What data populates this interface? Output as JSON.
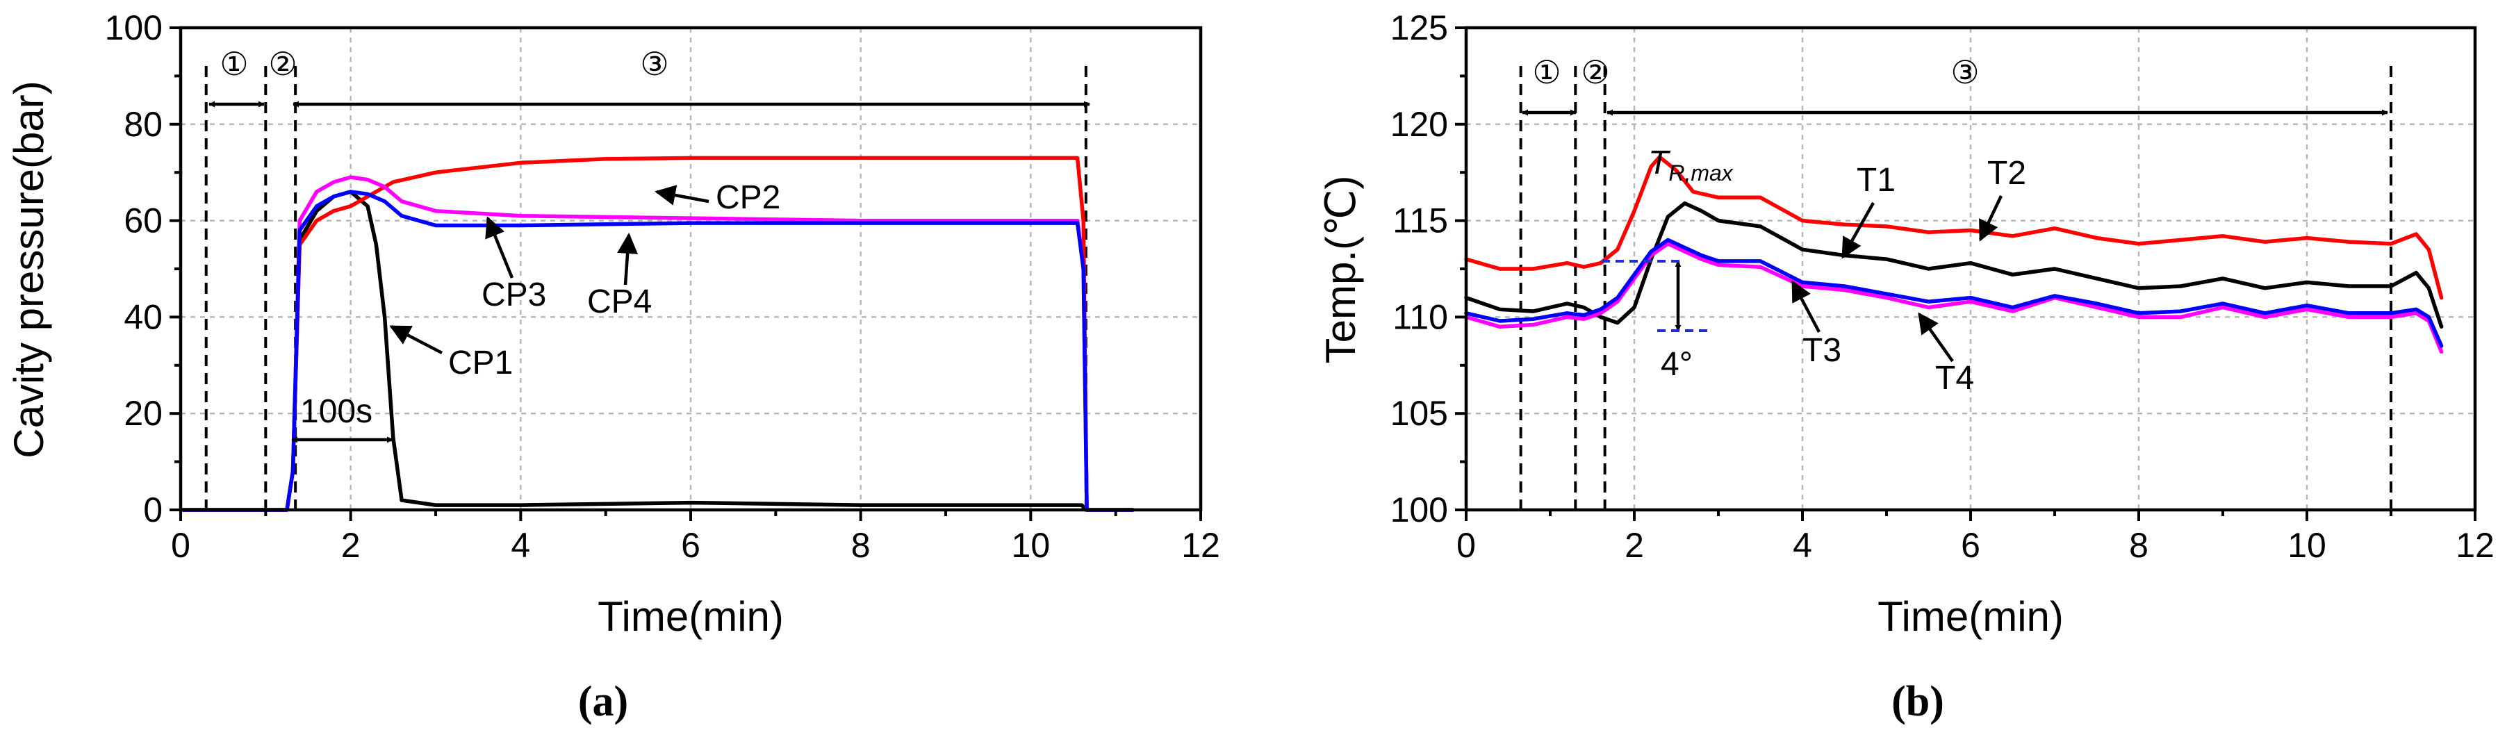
{
  "chart_data": [
    {
      "type": "line",
      "panel_label": "(a)",
      "xlabel": "Time(min)",
      "ylabel": "Cavity pressure(bar)",
      "xlim": [
        0,
        12
      ],
      "ylim": [
        0,
        100
      ],
      "xticks": [
        0,
        2,
        4,
        6,
        8,
        10,
        12
      ],
      "yticks": [
        0,
        20,
        40,
        60,
        80,
        100
      ],
      "grid": true,
      "colors": {
        "CP1": "#000000",
        "CP2": "#ff0000",
        "CP3": "#ff00ff",
        "CP4": "#0000ff"
      },
      "series": [
        {
          "name": "CP1",
          "x": [
            0,
            1.25,
            1.32,
            1.4,
            1.6,
            1.8,
            2.0,
            2.2,
            2.3,
            2.4,
            2.5,
            2.6,
            3,
            4,
            6,
            8,
            10,
            10.6,
            10.65,
            11.2
          ],
          "y": [
            0,
            0,
            8,
            56,
            62,
            65,
            66,
            63,
            55,
            40,
            15,
            2,
            1,
            1,
            1.5,
            1,
            1,
            1,
            0,
            0
          ]
        },
        {
          "name": "CP2",
          "x": [
            0,
            1.25,
            1.32,
            1.4,
            1.6,
            1.8,
            2.0,
            2.2,
            2.5,
            3,
            4,
            5,
            6,
            7,
            8,
            9,
            10,
            10.55,
            10.62,
            10.66,
            11.2
          ],
          "y": [
            0,
            0,
            8,
            55,
            60,
            62,
            63,
            65,
            68,
            70,
            72,
            72.8,
            73,
            73,
            73,
            73,
            73,
            73,
            60,
            0,
            0
          ]
        },
        {
          "name": "CP3",
          "x": [
            0,
            1.25,
            1.32,
            1.4,
            1.6,
            1.8,
            2.0,
            2.2,
            2.4,
            2.6,
            3,
            4,
            6,
            8,
            10,
            10.55,
            10.62,
            10.66,
            11.2
          ],
          "y": [
            0,
            0,
            8,
            60,
            66,
            68,
            69,
            68.5,
            67,
            64,
            62,
            61,
            60.5,
            60,
            60,
            60,
            50,
            0,
            0
          ]
        },
        {
          "name": "CP4",
          "x": [
            0,
            1.25,
            1.32,
            1.4,
            1.6,
            1.8,
            2.0,
            2.2,
            2.4,
            2.6,
            3,
            4,
            6,
            8,
            10,
            10.55,
            10.62,
            10.66,
            11.2
          ],
          "y": [
            0,
            0,
            8,
            58,
            63,
            65,
            66,
            65.5,
            64,
            61,
            59,
            59,
            59.5,
            59.5,
            59.5,
            59.5,
            50,
            0,
            0
          ]
        }
      ],
      "annotations": {
        "cp1": "CP1",
        "cp2": "CP2",
        "cp3": "CP3",
        "cp4": "CP4",
        "duration": "100s",
        "phase1": "①",
        "phase2": "②",
        "phase3": "③"
      },
      "phase_lines": [
        0.3,
        1.0,
        1.35,
        10.65
      ]
    },
    {
      "type": "line",
      "panel_label": "(b)",
      "xlabel": "Time(min)",
      "ylabel": "Temp.(℃)",
      "xlim": [
        0,
        12
      ],
      "ylim": [
        100,
        125
      ],
      "xticks": [
        0,
        2,
        4,
        6,
        8,
        10,
        12
      ],
      "yticks": [
        100,
        105,
        110,
        115,
        120,
        125
      ],
      "grid": true,
      "colors": {
        "T1": "#000000",
        "T2": "#ff0000",
        "T3": "#ff00ff",
        "T4": "#0000ff"
      },
      "series": [
        {
          "name": "T1",
          "x": [
            0,
            0.4,
            0.8,
            1.2,
            1.4,
            1.6,
            1.8,
            2.0,
            2.2,
            2.4,
            2.6,
            2.8,
            3.0,
            3.5,
            4.0,
            4.5,
            5.0,
            5.5,
            6.0,
            6.5,
            7.0,
            7.5,
            8.0,
            8.5,
            9.0,
            9.5,
            10.0,
            10.5,
            11.0,
            11.3,
            11.45,
            11.6
          ],
          "y": [
            111,
            110.4,
            110.3,
            110.7,
            110.5,
            110.0,
            109.7,
            110.5,
            113,
            115.2,
            115.9,
            115.5,
            115,
            114.7,
            113.5,
            113.2,
            113.0,
            112.5,
            112.8,
            112.2,
            112.5,
            112.0,
            111.5,
            111.6,
            112.0,
            111.5,
            111.8,
            111.6,
            111.6,
            112.3,
            111.5,
            109.5
          ]
        },
        {
          "name": "T2",
          "x": [
            0,
            0.4,
            0.8,
            1.2,
            1.4,
            1.6,
            1.8,
            2.0,
            2.2,
            2.3,
            2.5,
            2.7,
            3.0,
            3.5,
            4.0,
            4.5,
            5.0,
            5.5,
            6.0,
            6.5,
            7.0,
            7.5,
            8.0,
            8.5,
            9.0,
            9.5,
            10.0,
            10.5,
            11.0,
            11.3,
            11.45,
            11.6
          ],
          "y": [
            113,
            112.5,
            112.5,
            112.8,
            112.6,
            112.8,
            113.5,
            115.5,
            117.8,
            118.3,
            117.6,
            116.5,
            116.2,
            116.2,
            115.0,
            114.8,
            114.7,
            114.4,
            114.5,
            114.2,
            114.6,
            114.1,
            113.8,
            114.0,
            114.2,
            113.9,
            114.1,
            113.9,
            113.8,
            114.3,
            113.5,
            111
          ]
        },
        {
          "name": "T3",
          "x": [
            0,
            0.4,
            0.8,
            1.2,
            1.4,
            1.6,
            1.8,
            2.0,
            2.2,
            2.4,
            2.6,
            2.8,
            3.0,
            3.5,
            4.0,
            4.5,
            5.0,
            5.5,
            6.0,
            6.5,
            7.0,
            7.5,
            8.0,
            8.5,
            9.0,
            9.5,
            10.0,
            10.5,
            11.0,
            11.3,
            11.45,
            11.6
          ],
          "y": [
            110,
            109.5,
            109.6,
            110.0,
            109.9,
            110.2,
            110.8,
            112,
            113.2,
            113.8,
            113.4,
            113.0,
            112.7,
            112.6,
            111.6,
            111.4,
            111.0,
            110.5,
            110.8,
            110.3,
            111.0,
            110.5,
            110.0,
            110.0,
            110.5,
            110.0,
            110.4,
            110.0,
            110.0,
            110.2,
            109.8,
            108.2
          ]
        },
        {
          "name": "T4",
          "x": [
            0,
            0.4,
            0.8,
            1.2,
            1.4,
            1.6,
            1.8,
            2.0,
            2.2,
            2.4,
            2.6,
            2.8,
            3.0,
            3.5,
            4.0,
            4.5,
            5.0,
            5.5,
            6.0,
            6.5,
            7.0,
            7.5,
            8.0,
            8.5,
            9.0,
            9.5,
            10.0,
            10.5,
            11.0,
            11.3,
            11.45,
            11.6
          ],
          "y": [
            110.2,
            109.8,
            109.9,
            110.2,
            110.1,
            110.4,
            111.0,
            112.2,
            113.4,
            114.0,
            113.6,
            113.2,
            112.9,
            112.9,
            111.8,
            111.6,
            111.2,
            110.8,
            111.0,
            110.5,
            111.1,
            110.7,
            110.2,
            110.3,
            110.7,
            110.2,
            110.6,
            110.2,
            110.2,
            110.4,
            110.0,
            108.5
          ]
        }
      ],
      "annotations": {
        "t1": "T1",
        "t2": "T2",
        "t3": "T3",
        "t4": "T4",
        "trmax_main": "T",
        "trmax_sub": "R,max",
        "delta": "4°",
        "phase1": "①",
        "phase2": "②",
        "phase3": "③"
      },
      "phase_lines": [
        0.65,
        1.3,
        1.65,
        11.0
      ]
    }
  ]
}
